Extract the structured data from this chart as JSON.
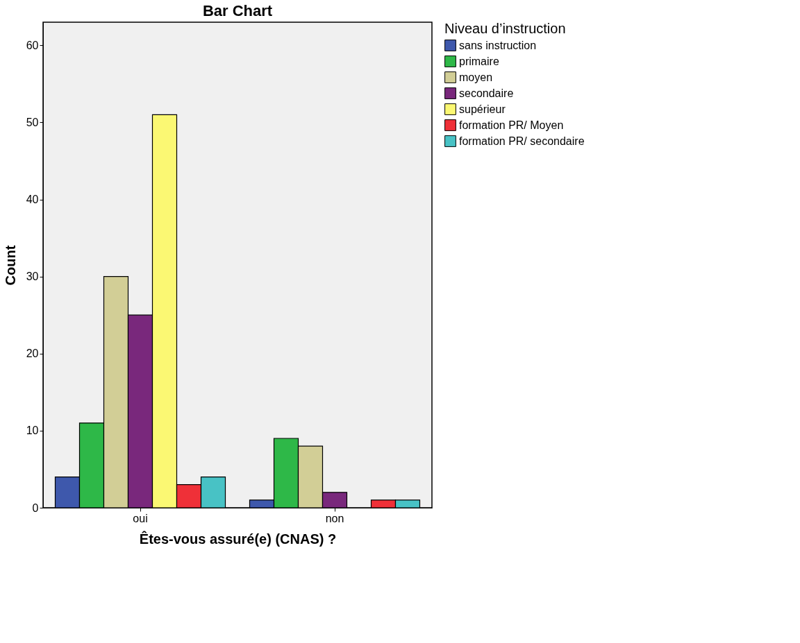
{
  "chart_data": {
    "type": "bar",
    "title": "Bar Chart",
    "xlabel": "Êtes-vous assuré(e) (CNAS) ?",
    "ylabel": "Count",
    "legend_title": "Niveau d’instruction",
    "categories": [
      "oui",
      "non"
    ],
    "series": [
      {
        "name": "sans instruction",
        "color": "#3e58ac",
        "values": [
          4,
          1
        ]
      },
      {
        "name": "primaire",
        "color": "#2eb848",
        "values": [
          11,
          9
        ]
      },
      {
        "name": "moyen",
        "color": "#d2ce96",
        "values": [
          30,
          8
        ]
      },
      {
        "name": "secondaire",
        "color": "#79287c",
        "values": [
          25,
          2
        ]
      },
      {
        "name": "supérieur",
        "color": "#fbf873",
        "values": [
          51,
          null
        ]
      },
      {
        "name": "formation PR/ Moyen",
        "color": "#ef3038",
        "values": [
          3,
          1
        ]
      },
      {
        "name": "formation PR/ secondaire",
        "color": "#48c2c5",
        "values": [
          4,
          1
        ]
      }
    ],
    "ylim": [
      0,
      63
    ],
    "yticks": [
      0,
      10,
      20,
      30,
      40,
      50,
      60
    ],
    "grid": false,
    "legend": "top right"
  }
}
